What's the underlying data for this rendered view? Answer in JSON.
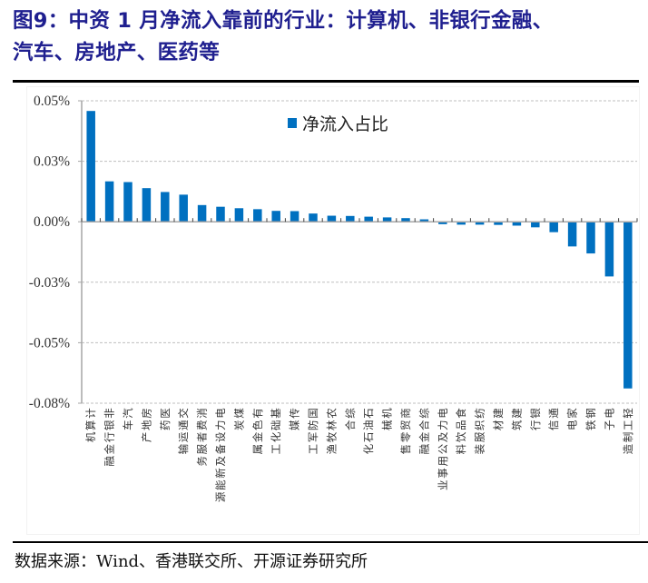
{
  "figure": {
    "title_line1": "图9：中资 1 月净流入靠前的行业：计算机、非银行金融、",
    "title_line2": "汽车、房地产、医药等",
    "source": "数据来源：Wind、香港联交所、开源证券研究所"
  },
  "colors": {
    "title": "#1f1f8f",
    "bar": "#0070c0",
    "grid": "#bfbfbf",
    "axis": "#a6a6a6"
  },
  "chart_data": {
    "type": "bar",
    "title": "",
    "xlabel": "",
    "ylabel": "",
    "ylim": [
      -0.075,
      0.05
    ],
    "yticks": [
      0.05,
      0.025,
      0.0,
      -0.025,
      -0.05,
      -0.075
    ],
    "ytick_labels": [
      "0.05%",
      "0.03%",
      "0.00%",
      "-0.03%",
      "-0.05%",
      "-0.08%"
    ],
    "grid": "horizontal dashed",
    "legend": {
      "position": "top-center",
      "entries": [
        "净流入占比"
      ]
    },
    "unit": "%",
    "categories": [
      "计算机",
      "非银行金融",
      "汽车",
      "房地产",
      "医药",
      "交通运输",
      "消费者服务",
      "电力设备及新能源",
      "煤炭",
      "有色金属",
      "基础化工",
      "传媒",
      "国防军工",
      "农林牧渔",
      "综合",
      "石油石化",
      "机械",
      "商贸零售",
      "综合金融",
      "电力及公用事业",
      "食品饮料",
      "纺织服装",
      "建材",
      "建筑",
      "银行",
      "通信",
      "家电",
      "钢铁",
      "电子",
      "轻工制造"
    ],
    "series": [
      {
        "name": "净流入占比",
        "values": [
          0.0458,
          0.0167,
          0.0164,
          0.0139,
          0.0123,
          0.0112,
          0.0069,
          0.0062,
          0.0056,
          0.0052,
          0.0045,
          0.0044,
          0.0034,
          0.0025,
          0.0024,
          0.0021,
          0.0018,
          0.0015,
          0.001,
          -0.001,
          -0.0012,
          -0.0012,
          -0.0013,
          -0.0016,
          -0.0023,
          -0.0043,
          -0.0102,
          -0.0131,
          -0.0226,
          -0.0689
        ]
      }
    ]
  }
}
